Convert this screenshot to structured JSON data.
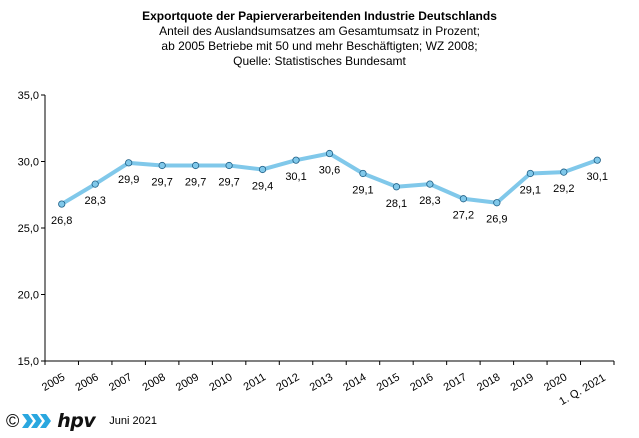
{
  "chart_data": {
    "type": "line",
    "title": "Exportquote der Papierverarbeitenden Industrie Deutschlands",
    "subtitle_lines": [
      "Anteil des Auslandsumsatzes am Gesamtumsatz in Prozent;",
      "ab 2005 Betriebe mit 50 und mehr Beschäftigten; WZ 2008;",
      "Quelle: Statistisches Bundesamt"
    ],
    "categories": [
      "2005",
      "2006",
      "2007",
      "2008",
      "2009",
      "2010",
      "2011",
      "2012",
      "2013",
      "2014",
      "2015",
      "2016",
      "2017",
      "2018",
      "2019",
      "2020",
      "1. Q. 2021"
    ],
    "values": [
      26.8,
      28.3,
      29.9,
      29.7,
      29.7,
      29.7,
      29.4,
      30.1,
      30.6,
      29.1,
      28.1,
      28.3,
      27.2,
      26.9,
      29.1,
      29.2,
      30.1
    ],
    "data_labels": [
      "26,8",
      "28,3",
      "29,9",
      "29,7",
      "29,7",
      "29,7",
      "29,4",
      "30,1",
      "30,6",
      "29,1",
      "28,1",
      "28,3",
      "27,2",
      "26,9",
      "29,1",
      "29,2",
      "30,1"
    ],
    "y_ticks": [
      "15,0",
      "20,0",
      "25,0",
      "30,0",
      "35,0"
    ],
    "ylim": [
      15,
      35
    ],
    "grid": false,
    "xlabel": "",
    "ylabel": "",
    "line_color": "#80c8ea",
    "marker_color": "#80c8ea"
  },
  "footer": {
    "copyright_symbol": "©",
    "logo_text": "hpv",
    "date": "Juni 2021"
  }
}
